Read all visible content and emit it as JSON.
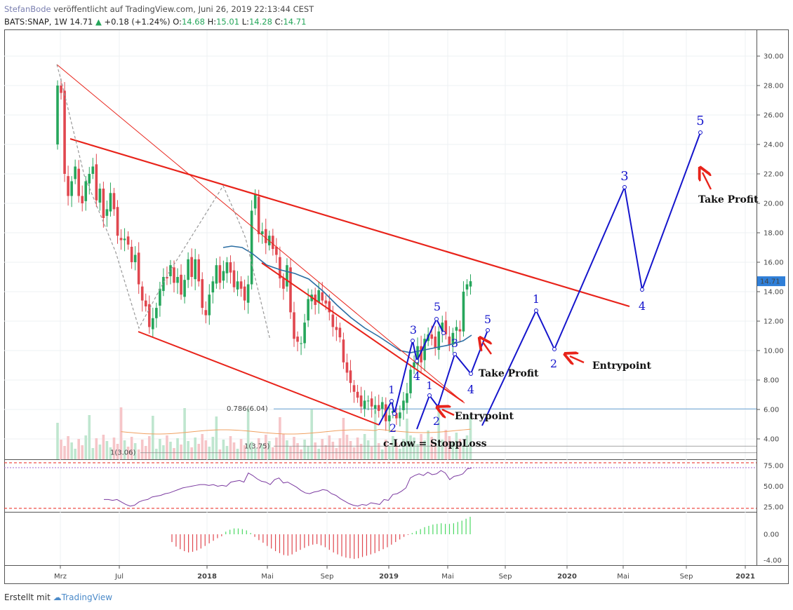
{
  "header": {
    "author": "StefanBode",
    "published_text": "veröffentlicht auf TradingView.com, Juni 26, 2019 22:13:44 CEST",
    "symbol": "BATS:SNAP, 1W",
    "last": "14.71",
    "change_arrow": "▲",
    "change": "+0.18 (+1.24%)",
    "open_label": "O:",
    "open": "14.68",
    "high_label": "H:",
    "high": "15.01",
    "low_label": "L:",
    "low": "14.28",
    "close_label": "C:",
    "close": "14.71"
  },
  "footer": {
    "prefix": "Erstellt mit",
    "brand": "TradingView"
  },
  "colors": {
    "up": "#26a65b",
    "down": "#e0474f",
    "wave": "#1515cc",
    "trend": "#e8231a",
    "ma": "#2b6ea3",
    "rsi": "#7b3aa0",
    "price_tag": "#2f7fd8"
  },
  "chart_data": [
    {
      "type": "candlestick",
      "symbol": "BATS:SNAP",
      "interval": "1W",
      "y_ticks": [
        "30.00",
        "28.00",
        "26.00",
        "24.00",
        "22.00",
        "20.00",
        "18.00",
        "16.00",
        "14.00",
        "12.00",
        "10.00",
        "8.00",
        "6.00",
        "4.00"
      ],
      "x_ticks": [
        "Mrz",
        "Jul",
        "2018",
        "Mai",
        "Sep",
        "2019",
        "Mai",
        "Sep",
        "2020",
        "Mai",
        "Sep",
        "2021"
      ],
      "ylim": [
        3.0,
        31.0
      ],
      "last_price_tag": "14.71",
      "close_path": [
        [
          0,
          28
        ],
        [
          1,
          27.5
        ],
        [
          2,
          22
        ],
        [
          3,
          20.5
        ],
        [
          4,
          21.5
        ],
        [
          5,
          22.5
        ],
        [
          6,
          20.5
        ],
        [
          7,
          20
        ],
        [
          8,
          21.5
        ],
        [
          9,
          22
        ],
        [
          10,
          22.5
        ],
        [
          11,
          20.2
        ],
        [
          12,
          21
        ],
        [
          13,
          19
        ],
        [
          14,
          19.6
        ],
        [
          15,
          20.7
        ],
        [
          16,
          19.6
        ],
        [
          17,
          17.8
        ],
        [
          18,
          17.5
        ],
        [
          19,
          17.6
        ],
        [
          20,
          17.2
        ],
        [
          21,
          16
        ],
        [
          22,
          16.5
        ],
        [
          23,
          14.5
        ],
        [
          24,
          13.4
        ],
        [
          25,
          13
        ],
        [
          26,
          11.6
        ],
        [
          27,
          12.2
        ],
        [
          28,
          12.9
        ],
        [
          29,
          14.2
        ],
        [
          30,
          15
        ],
        [
          31,
          14.9
        ],
        [
          32,
          15.8
        ],
        [
          33,
          14.6
        ],
        [
          34,
          15
        ],
        [
          35,
          13.8
        ],
        [
          36,
          14.8
        ],
        [
          37,
          16.2
        ],
        [
          38,
          15
        ],
        [
          39,
          16.2
        ],
        [
          40,
          14.7
        ],
        [
          41,
          12.9
        ],
        [
          42,
          12.4
        ],
        [
          43,
          13.8
        ],
        [
          44,
          14.7
        ],
        [
          45,
          15.8
        ],
        [
          46,
          14.6
        ],
        [
          47,
          15.4
        ],
        [
          48,
          16
        ],
        [
          49,
          15.3
        ],
        [
          50,
          14.3
        ],
        [
          51,
          14.7
        ],
        [
          52,
          14.2
        ],
        [
          53,
          13.4
        ],
        [
          54,
          14.5
        ],
        [
          55,
          19.5
        ],
        [
          56,
          20.6
        ],
        [
          57,
          17.9
        ],
        [
          58,
          18.1
        ],
        [
          59,
          17.3
        ],
        [
          60,
          17.8
        ],
        [
          61,
          16.9
        ],
        [
          62,
          16.5
        ],
        [
          63,
          14.9
        ],
        [
          64,
          14.2
        ],
        [
          65,
          15.8
        ],
        [
          66,
          12.6
        ],
        [
          67,
          10.8
        ],
        [
          68,
          10.6
        ],
        [
          69,
          10.5
        ],
        [
          70,
          11.9
        ],
        [
          71,
          13.5
        ],
        [
          72,
          13.8
        ],
        [
          73,
          13.1
        ],
        [
          74,
          14.1
        ],
        [
          75,
          13.4
        ],
        [
          76,
          13.2
        ],
        [
          77,
          12.6
        ],
        [
          78,
          11.6
        ],
        [
          79,
          11.4
        ],
        [
          80,
          10.9
        ],
        [
          81,
          9.2
        ],
        [
          82,
          8.5
        ],
        [
          83,
          7.8
        ],
        [
          84,
          7.2
        ],
        [
          85,
          6.8
        ],
        [
          86,
          6.2
        ],
        [
          87,
          6.6
        ],
        [
          88,
          6.6
        ],
        [
          89,
          6.2
        ],
        [
          90,
          6.3
        ],
        [
          91,
          5.9
        ],
        [
          92,
          6.5
        ],
        [
          93,
          5.2
        ],
        [
          94,
          5.6
        ],
        [
          95,
          5.9
        ],
        [
          96,
          5.4
        ],
        [
          97,
          5.8
        ],
        [
          98,
          6.6
        ],
        [
          99,
          7.1
        ],
        [
          100,
          8.7
        ],
        [
          101,
          9.2
        ],
        [
          102,
          10.3
        ],
        [
          103,
          9.2
        ],
        [
          104,
          10.8
        ],
        [
          105,
          11.1
        ],
        [
          106,
          10.8
        ],
        [
          107,
          10.2
        ],
        [
          108,
          11.3
        ],
        [
          109,
          11.9
        ],
        [
          110,
          11.1
        ],
        [
          111,
          10.4
        ],
        [
          112,
          11.2
        ],
        [
          113,
          11.6
        ],
        [
          114,
          11.3
        ],
        [
          115,
          14
        ],
        [
          116,
          14.5
        ],
        [
          117,
          14.71
        ]
      ],
      "annotations": [
        {
          "text": "1",
          "color": "#1515cc"
        },
        {
          "text": "2",
          "color": "#1515cc"
        },
        {
          "text": "3",
          "color": "#1515cc"
        },
        {
          "text": "4",
          "color": "#1515cc"
        },
        {
          "text": "5",
          "color": "#1515cc"
        },
        {
          "text": "Take Profit"
        },
        {
          "text": "Entrypoint"
        },
        {
          "text": "c-Low = StoppLoss"
        }
      ],
      "fib_labels": [
        "0.786(6.04)",
        "1(3.75)",
        "1(3.06)"
      ]
    },
    {
      "type": "line",
      "name": "RSI",
      "y_ticks": [
        "75.00",
        "50.00",
        "25.00"
      ],
      "ylim": [
        15,
        85
      ],
      "values": [
        34,
        34,
        33,
        34,
        31,
        28,
        26,
        27,
        31,
        33,
        34,
        37,
        38,
        39,
        41,
        42,
        44,
        46,
        48,
        49,
        50,
        51,
        52,
        52,
        51,
        52,
        50,
        51,
        50,
        55,
        56,
        57,
        55,
        66,
        63,
        59,
        56,
        55,
        52,
        58,
        60,
        54,
        55,
        52,
        49,
        45,
        42,
        41,
        43,
        44,
        46,
        45,
        41,
        39,
        35,
        32,
        29,
        27,
        26,
        28,
        27,
        30,
        29,
        28,
        34,
        33,
        40,
        41,
        44,
        48,
        60,
        63,
        65,
        63,
        67,
        64,
        65,
        69,
        66,
        58,
        62,
        63,
        65,
        71,
        72
      ]
    },
    {
      "type": "bar",
      "name": "MACD Histogram",
      "y_ticks": [
        "0.00",
        "-4.00"
      ],
      "ylim": [
        -4.6,
        3.4
      ],
      "values": [
        -1.2,
        -1.9,
        -2.3,
        -2.6,
        -2.8,
        -2.7,
        -2.5,
        -2.2,
        -1.8,
        -1.4,
        -1.0,
        -0.6,
        -0.3,
        0.4,
        0.7,
        0.9,
        0.9,
        0.8,
        0.6,
        0.2,
        -0.4,
        -0.9,
        -1.3,
        -1.8,
        -2.2,
        -2.6,
        -2.9,
        -3.2,
        -3.3,
        -3.1,
        -2.7,
        -2.4,
        -2.1,
        -1.8,
        -1.6,
        -1.5,
        -1.7,
        -2.0,
        -2.4,
        -2.8,
        -3.1,
        -3.4,
        -3.6,
        -3.7,
        -3.8,
        -3.7,
        -3.5,
        -3.3,
        -3.1,
        -2.9,
        -2.6,
        -2.3,
        -2.0,
        -1.6,
        -1.2,
        -0.8,
        -0.4,
        -0.1,
        0.2,
        0.5,
        0.8,
        1.1,
        1.3,
        1.5,
        1.6,
        1.7,
        1.6,
        1.6,
        1.7,
        1.9,
        2.1,
        2.4,
        2.7
      ]
    }
  ]
}
